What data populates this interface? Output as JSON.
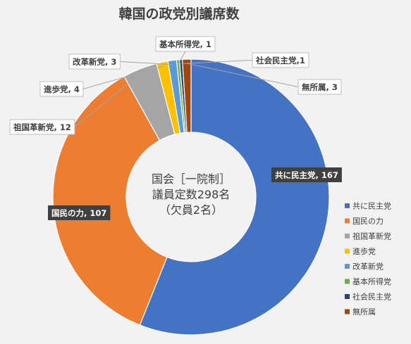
{
  "chart_data": {
    "type": "pie",
    "title": "韓国の政党別議席数",
    "center_text": [
      "国会［一院制］",
      "議員定数298名",
      "（欠員2名）"
    ],
    "categories": [
      "共に民主党",
      "国民の力",
      "祖国革新党",
      "進歩党",
      "改革新党",
      "基本所得党",
      "社会民主党",
      "無所属"
    ],
    "values": [
      167,
      107,
      12,
      4,
      3,
      1,
      1,
      3
    ],
    "data_labels": [
      "共に民主党, 167",
      "国民の力, 107",
      "祖国革新党, 12",
      "進歩党, 4",
      "改革新党, 3",
      "基本所得党, 1",
      "社会民主党,1",
      "無所属, 3"
    ],
    "colors": [
      "#4472c4",
      "#ed7d31",
      "#a5a5a5",
      "#ffc000",
      "#5b9bd5",
      "#70ad47",
      "#264478",
      "#9e480e"
    ],
    "donut": true,
    "legend_position": "right"
  }
}
